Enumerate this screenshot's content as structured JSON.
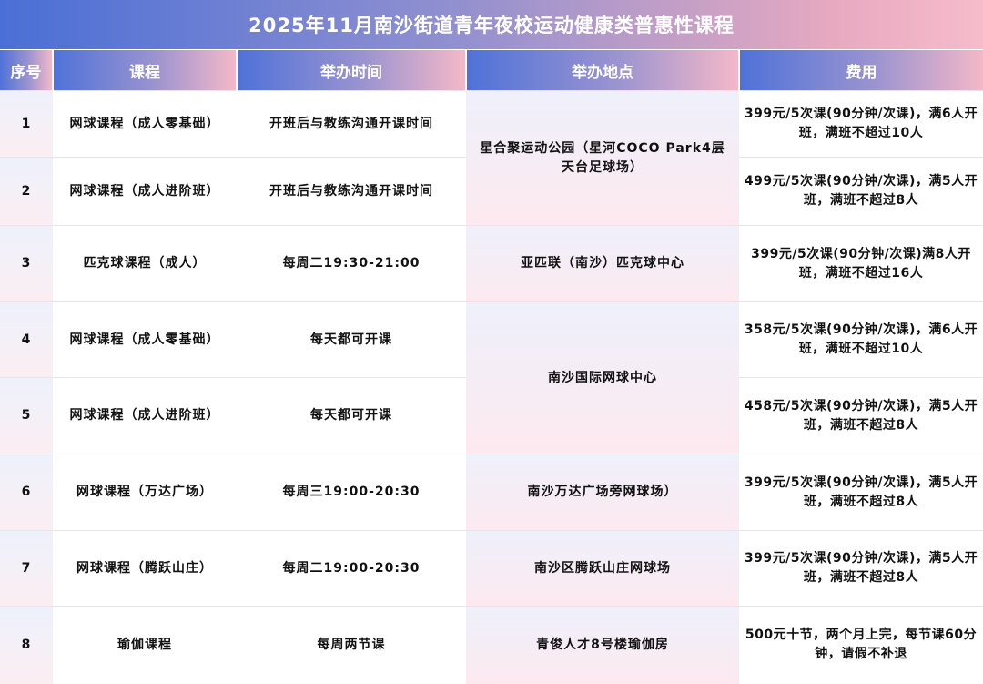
{
  "title": "2025年11月南沙街道青年夜校运动健康类普惠性课程",
  "headers": [
    "序号",
    "课程",
    "举办时间",
    "举办地点",
    "费用"
  ],
  "rows": [
    {
      "no": "1",
      "course": "网球课程（成人零基础）",
      "time": "开班后与教练沟通开课时间",
      "location": "星合聚运动公园（星河COCO Park4层天台足球场）",
      "fee": "399元/5次课(90分钟/次课)，满6人开班，满班不超过10人"
    },
    {
      "no": "2",
      "course": "网球课程（成人进阶班）",
      "time": "开班后与教练沟通开课时间",
      "fee": "499元/5次课(90分钟/次课)，满5人开班，满班不超过8人"
    },
    {
      "no": "3",
      "course": "匹克球课程（成人）",
      "time": "每周二19:30-21:00",
      "location": "亚匹联（南沙）匹克球中心",
      "fee": "399元/5次课(90分钟/次课)满8人开班，满班不超过16人"
    },
    {
      "no": "4",
      "course": "网球课程（成人零基础）",
      "time": "每天都可开课",
      "location": "南沙国际网球中心",
      "fee": "358元/5次课(90分钟/次课)，满6人开班，满班不超过10人"
    },
    {
      "no": "5",
      "course": "网球课程（成人进阶班）",
      "time": "每天都可开课",
      "fee": "458元/5次课(90分钟/次课)，满5人开班，满班不超过8人"
    },
    {
      "no": "6",
      "course": "网球课程（万达广场）",
      "time": "每周三19:00-20:30",
      "location": "南沙万达广场旁网球场）",
      "fee": "399元/5次课(90分钟/次课)，满5人开班，满班不超过8人"
    },
    {
      "no": "7",
      "course": "网球课程（腾跃山庄）",
      "time": "每周二19:00-20:30",
      "location": "南沙区腾跃山庄网球场",
      "fee": "399元/5次课(90分钟/次课)，满5人开班，满班不超过8人"
    },
    {
      "no": "8",
      "course": "瑜伽课程",
      "time": "每周两节课",
      "location": "青俊人才8号楼瑜伽房",
      "fee": "500元十节，两个月上完，每节课60分钟，请假不补退"
    }
  ]
}
